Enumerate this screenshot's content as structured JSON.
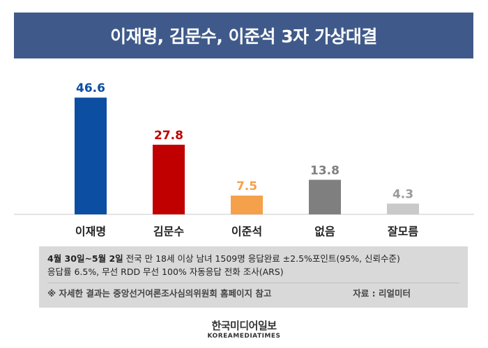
{
  "title": "이재명, 김문수, 이준석 3자 가상대결",
  "chart_data": {
    "type": "bar",
    "categories": [
      "이재명",
      "김문수",
      "이준석",
      "없음",
      "잘모름"
    ],
    "values": [
      46.6,
      27.8,
      7.5,
      13.8,
      4.3
    ],
    "value_labels": [
      "46.6",
      "27.8",
      "7.5",
      "13.8",
      "4.3"
    ],
    "colors": [
      "#0b4ea2",
      "#c00000",
      "#f5a04a",
      "#7f7f7f",
      "#c9c9c9"
    ],
    "label_colors": [
      "#0b4ea2",
      "#c00000",
      "#f5a04a",
      "#7f7f7f",
      "#9a9a9a"
    ],
    "ylim": [
      0,
      50
    ],
    "grid": false,
    "title": "이재명, 김문수, 이준석 3자 가상대결",
    "xlabel": "",
    "ylabel": ""
  },
  "note": {
    "date": "4월 30일~5월 2일",
    "line1_rest": " 전국 만 18세 이상 남녀 1509명 응답완료 ±2.5%포인트(95%, 신뢰수준)",
    "line2": "응답률 6.5%, 무선 RDD 무선 100% 자동응답 전화 조사(ARS)",
    "reference": "※ 자세한 결과는 중앙선거여론조사심의위원회 홈페이지 참고",
    "source": "자료 : 리얼미터"
  },
  "logo": {
    "korean": "한국미디어일보",
    "english": "KOREAMEDIATIMES"
  }
}
